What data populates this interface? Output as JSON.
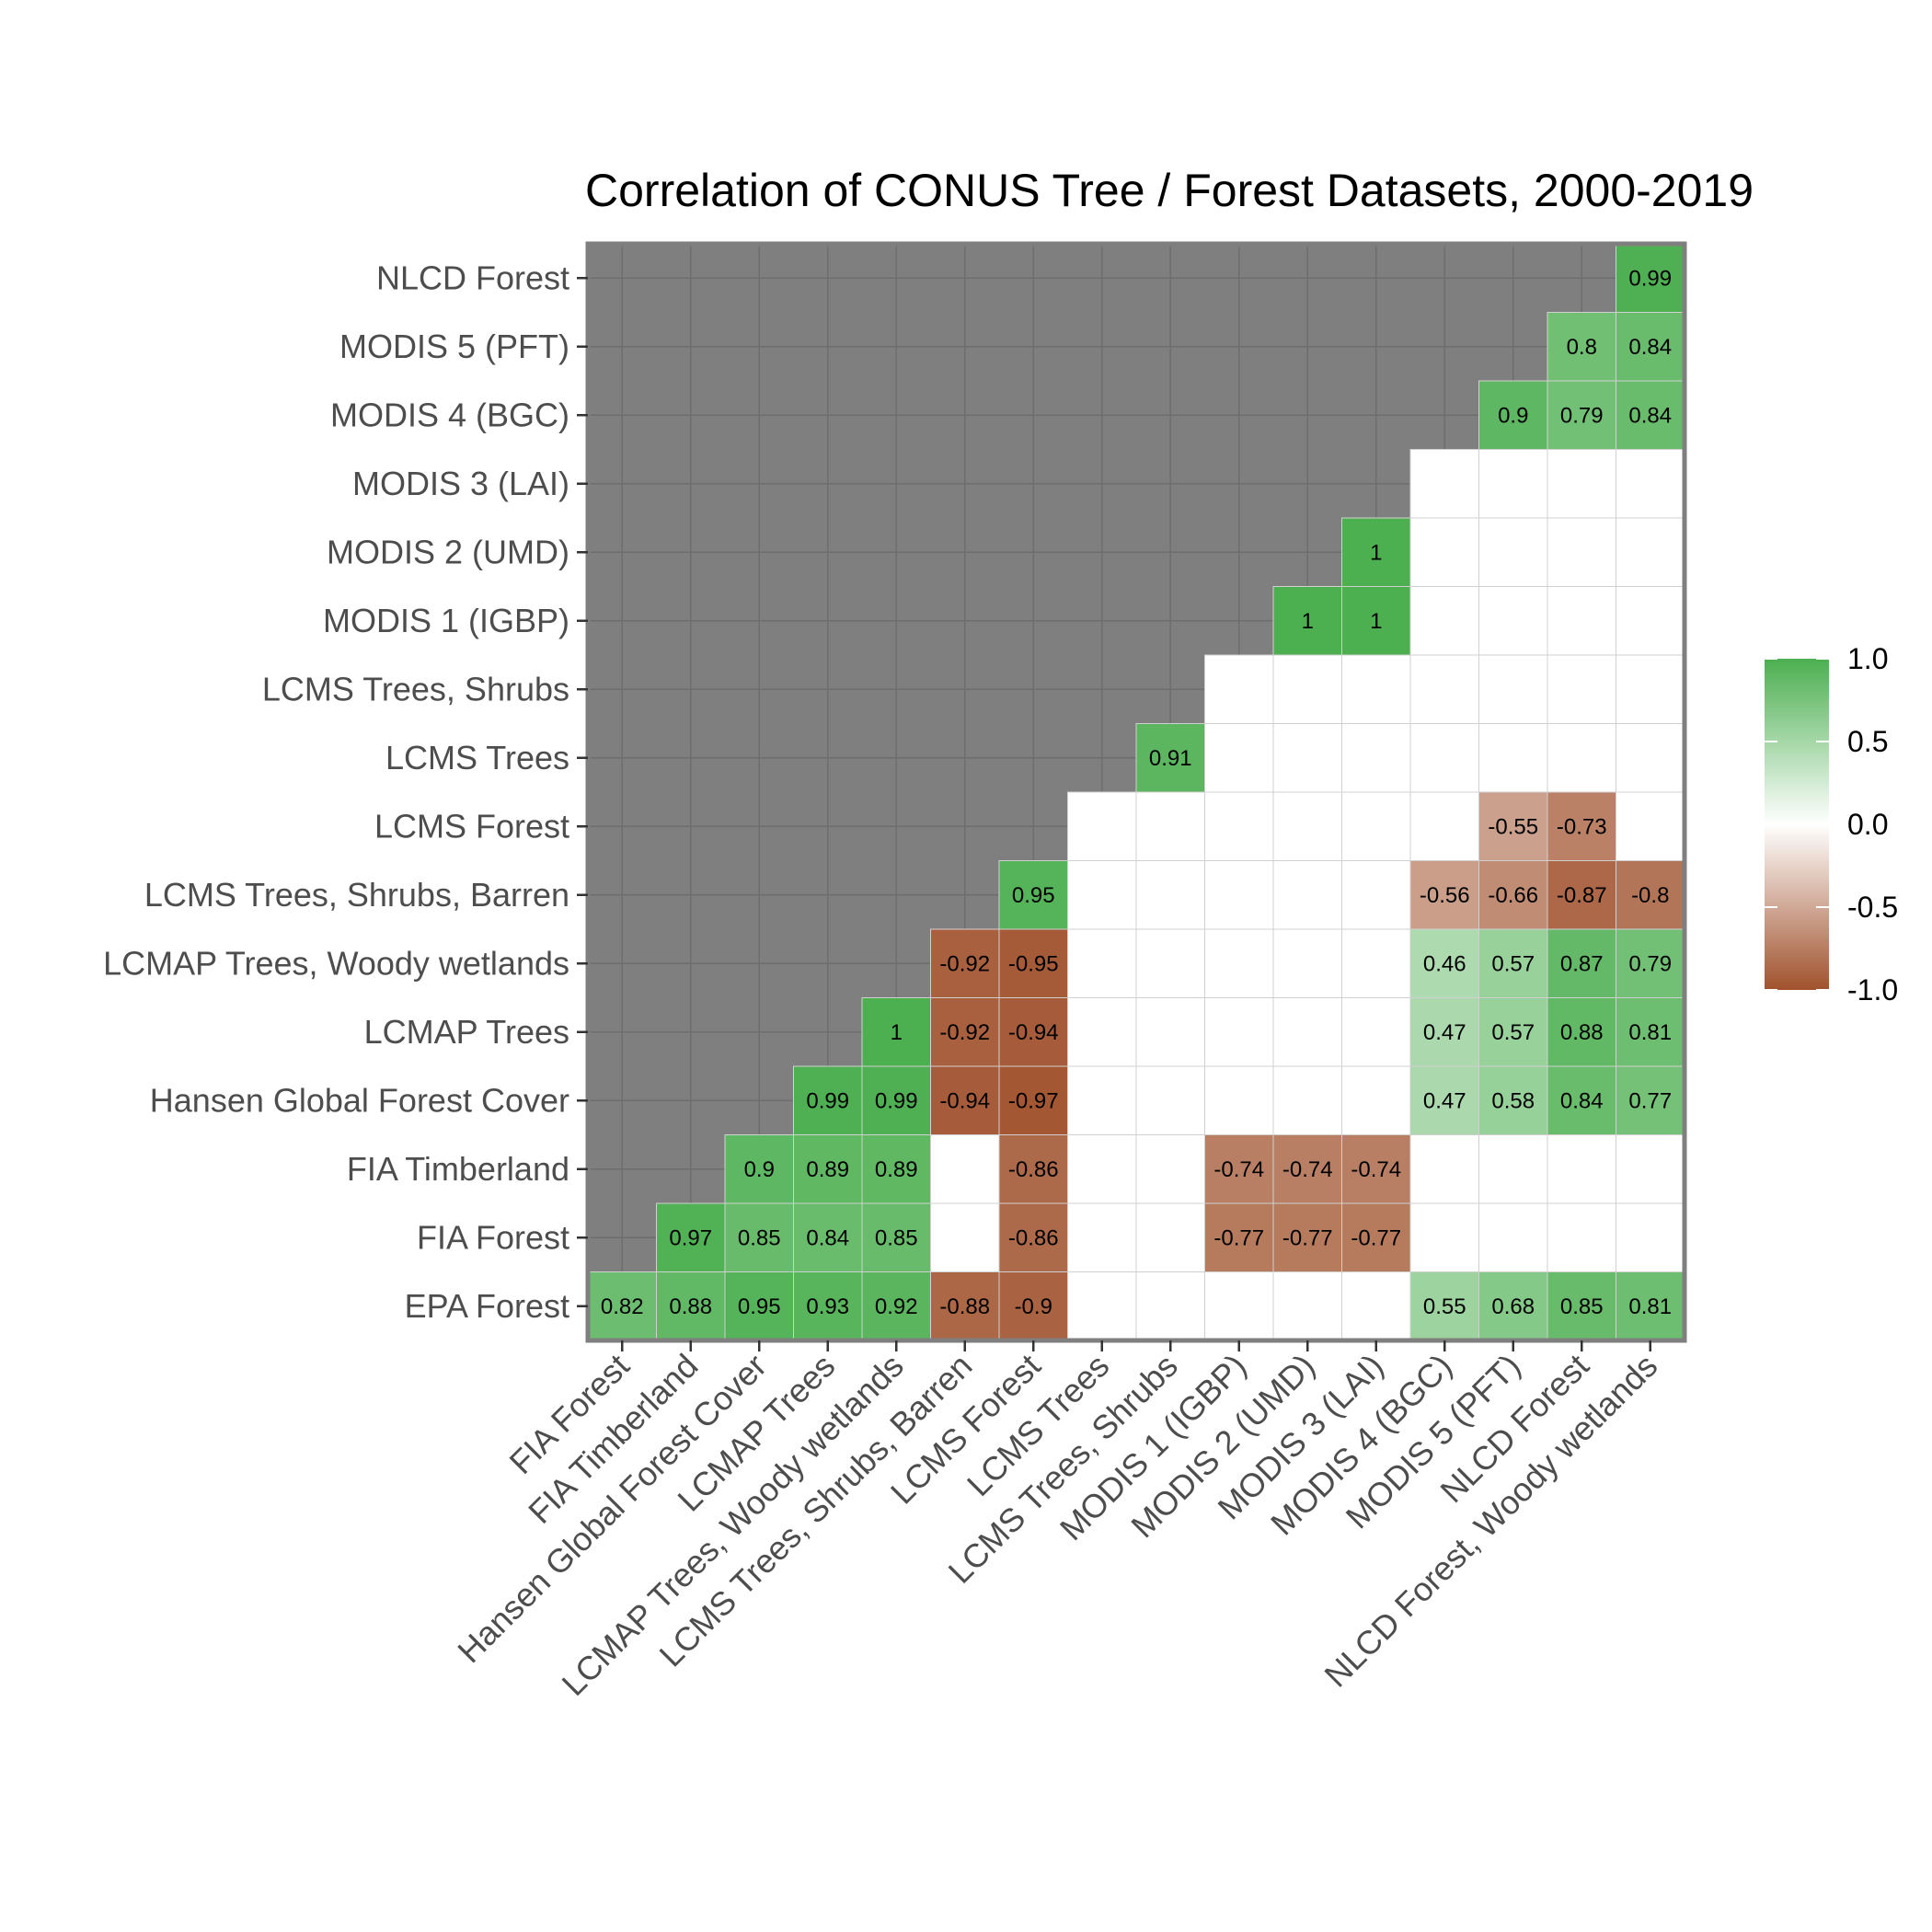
{
  "chart_data": {
    "type": "heatmap",
    "title": "Correlation of CONUS Tree / Forest Datasets, 2000-2019",
    "x_labels": [
      "FIA Forest",
      "FIA Timberland",
      "Hansen Global Forest Cover",
      "LCMAP Trees",
      "LCMAP Trees, Woody wetlands",
      "LCMS Trees, Shrubs, Barren",
      "LCMS Forest",
      "LCMS Trees",
      "LCMS Trees, Shrubs",
      "MODIS 1 (IGBP)",
      "MODIS 2 (UMD)",
      "MODIS 3 (LAI)",
      "MODIS 4 (BGC)",
      "MODIS 5 (PFT)",
      "NLCD Forest",
      "NLCD Forest, Woody wetlands"
    ],
    "y_labels": [
      "EPA Forest",
      "FIA Forest",
      "FIA Timberland",
      "Hansen Global Forest Cover",
      "LCMAP Trees",
      "LCMAP Trees, Woody wetlands",
      "LCMS Trees, Shrubs, Barren",
      "LCMS Forest",
      "LCMS Trees",
      "LCMS Trees, Shrubs",
      "MODIS 1 (IGBP)",
      "MODIS 2 (UMD)",
      "MODIS 3 (LAI)",
      "MODIS 4 (BGC)",
      "MODIS 5 (PFT)",
      "NLCD Forest"
    ],
    "values": [
      [
        0.82,
        0.88,
        0.95,
        0.93,
        0.92,
        -0.88,
        -0.9,
        null,
        null,
        null,
        null,
        null,
        0.55,
        0.68,
        0.85,
        0.81
      ],
      [
        null,
        0.97,
        0.85,
        0.84,
        0.85,
        null,
        -0.86,
        null,
        null,
        -0.77,
        -0.77,
        -0.77,
        null,
        null,
        null,
        null
      ],
      [
        null,
        null,
        0.9,
        0.89,
        0.89,
        null,
        -0.86,
        null,
        null,
        -0.74,
        -0.74,
        -0.74,
        null,
        null,
        null,
        null
      ],
      [
        null,
        null,
        null,
        0.99,
        0.99,
        -0.94,
        -0.97,
        null,
        null,
        null,
        null,
        null,
        0.47,
        0.58,
        0.84,
        0.77
      ],
      [
        null,
        null,
        null,
        null,
        1,
        -0.92,
        -0.94,
        null,
        null,
        null,
        null,
        null,
        0.47,
        0.57,
        0.88,
        0.81
      ],
      [
        null,
        null,
        null,
        null,
        null,
        -0.92,
        -0.95,
        null,
        null,
        null,
        null,
        null,
        0.46,
        0.57,
        0.87,
        0.79
      ],
      [
        null,
        null,
        null,
        null,
        null,
        null,
        0.95,
        null,
        null,
        null,
        null,
        null,
        -0.56,
        -0.66,
        -0.87,
        -0.8
      ],
      [
        null,
        null,
        null,
        null,
        null,
        null,
        null,
        null,
        null,
        null,
        null,
        null,
        null,
        -0.55,
        -0.73,
        null
      ],
      [
        null,
        null,
        null,
        null,
        null,
        null,
        null,
        null,
        0.91,
        null,
        null,
        null,
        null,
        null,
        null,
        null
      ],
      [
        null,
        null,
        null,
        null,
        null,
        null,
        null,
        null,
        null,
        null,
        null,
        null,
        null,
        null,
        null,
        null
      ],
      [
        null,
        null,
        null,
        null,
        null,
        null,
        null,
        null,
        null,
        null,
        1,
        1,
        null,
        null,
        null,
        null
      ],
      [
        null,
        null,
        null,
        null,
        null,
        null,
        null,
        null,
        null,
        null,
        null,
        1,
        null,
        null,
        null,
        null
      ],
      [
        null,
        null,
        null,
        null,
        null,
        null,
        null,
        null,
        null,
        null,
        null,
        null,
        null,
        null,
        null,
        null
      ],
      [
        null,
        null,
        null,
        null,
        null,
        null,
        null,
        null,
        null,
        null,
        null,
        null,
        null,
        0.9,
        0.79,
        0.84
      ],
      [
        null,
        null,
        null,
        null,
        null,
        null,
        null,
        null,
        null,
        null,
        null,
        null,
        null,
        null,
        0.8,
        0.84
      ],
      [
        null,
        null,
        null,
        null,
        null,
        null,
        null,
        null,
        null,
        null,
        null,
        null,
        null,
        null,
        null,
        0.99
      ]
    ],
    "value_labels": [
      [
        "0.82",
        "0.88",
        "0.95",
        "0.93",
        "0.92",
        "-0.88",
        "-0.9",
        "",
        "",
        "",
        "",
        "",
        "0.55",
        "0.68",
        "0.85",
        "0.81"
      ],
      [
        "",
        "0.97",
        "0.85",
        "0.84",
        "0.85",
        "",
        "-0.86",
        "",
        "",
        "-0.77",
        "-0.77",
        "-0.77",
        "",
        "",
        "",
        ""
      ],
      [
        "",
        "",
        "0.9",
        "0.89",
        "0.89",
        "",
        "-0.86",
        "",
        "",
        "-0.74",
        "-0.74",
        "-0.74",
        "",
        "",
        "",
        ""
      ],
      [
        "",
        "",
        "",
        "0.99",
        "0.99",
        "-0.94",
        "-0.97",
        "",
        "",
        "",
        "",
        "",
        "0.47",
        "0.58",
        "0.84",
        "0.77"
      ],
      [
        "",
        "",
        "",
        "",
        "1",
        "-0.92",
        "-0.94",
        "",
        "",
        "",
        "",
        "",
        "0.47",
        "0.57",
        "0.88",
        "0.81"
      ],
      [
        "",
        "",
        "",
        "",
        "",
        "-0.92",
        "-0.95",
        "",
        "",
        "",
        "",
        "",
        "0.46",
        "0.57",
        "0.87",
        "0.79"
      ],
      [
        "",
        "",
        "",
        "",
        "",
        "",
        "0.95",
        "",
        "",
        "",
        "",
        "",
        "-0.56",
        "-0.66",
        "-0.87",
        "-0.8"
      ],
      [
        "",
        "",
        "",
        "",
        "",
        "",
        "",
        "",
        "",
        "",
        "",
        "",
        "",
        "-0.55",
        "-0.73",
        ""
      ],
      [
        "",
        "",
        "",
        "",
        "",
        "",
        "",
        "",
        "0.91",
        "",
        "",
        "",
        "",
        "",
        "",
        ""
      ],
      [
        "",
        "",
        "",
        "",
        "",
        "",
        "",
        "",
        "",
        "",
        "",
        "",
        "",
        "",
        "",
        ""
      ],
      [
        "",
        "",
        "",
        "",
        "",
        "",
        "",
        "",
        "",
        "",
        "1",
        "1",
        "",
        "",
        "",
        ""
      ],
      [
        "",
        "",
        "",
        "",
        "",
        "",
        "",
        "",
        "",
        "",
        "",
        "1",
        "",
        "",
        "",
        ""
      ],
      [
        "",
        "",
        "",
        "",
        "",
        "",
        "",
        "",
        "",
        "",
        "",
        "",
        "",
        "",
        "",
        ""
      ],
      [
        "",
        "",
        "",
        "",
        "",
        "",
        "",
        "",
        "",
        "",
        "",
        "",
        "",
        "0.9",
        "0.79",
        "0.84"
      ],
      [
        "",
        "",
        "",
        "",
        "",
        "",
        "",
        "",
        "",
        "",
        "",
        "",
        "",
        "",
        "0.8",
        "0.84"
      ],
      [
        "",
        "",
        "",
        "",
        "",
        "",
        "",
        "",
        "",
        "",
        "",
        "",
        "",
        "",
        "",
        "0.99"
      ]
    ],
    "scale": {
      "min": -1.0,
      "max": 1.0,
      "low_color": "#a0522d",
      "mid_color": "#ffffff",
      "high_color": "#4caf50"
    },
    "legend": {
      "placement": "right",
      "ticks": [
        1.0,
        0.5,
        0.0,
        -0.5,
        -1.0
      ],
      "tick_labels": [
        "1.0",
        "0.5",
        "0.0",
        "-0.5",
        "-1.0"
      ]
    },
    "colors": {
      "masked_background": "#7f7f7f",
      "in_range_background": "#ffffff",
      "panel_border": "#7f7f7f"
    }
  }
}
